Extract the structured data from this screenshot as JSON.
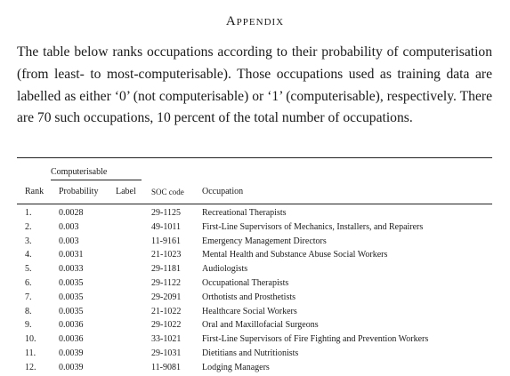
{
  "heading": "Appendix",
  "intro": "The table below ranks occupations according to their probability of computerisation (from least- to most-computerisable). Those occupations used as training data are labelled as either ‘0’ (not computerisable) or ‘1’ (computerisable), respectively. There are 70 such occupations, 10 percent of the total number of occupations.",
  "table": {
    "group_header": "Computerisable",
    "headers": {
      "rank": "Rank",
      "probability": "Probability",
      "label": "Label",
      "soc": "SOC code",
      "occupation": "Occupation"
    },
    "rows": [
      {
        "rank": "1.",
        "probability": "0.0028",
        "label": "",
        "soc": "29-1125",
        "occupation": "Recreational Therapists"
      },
      {
        "rank": "2.",
        "probability": "0.003",
        "label": "",
        "soc": "49-1011",
        "occupation": "First-Line Supervisors of Mechanics, Installers, and Repairers"
      },
      {
        "rank": "3.",
        "probability": "0.003",
        "label": "",
        "soc": "11-9161",
        "occupation": "Emergency Management Directors"
      },
      {
        "rank": "4.",
        "probability": "0.0031",
        "label": "",
        "soc": "21-1023",
        "occupation": "Mental Health and Substance Abuse Social Workers"
      },
      {
        "rank": "5.",
        "probability": "0.0033",
        "label": "",
        "soc": "29-1181",
        "occupation": "Audiologists"
      },
      {
        "rank": "6.",
        "probability": "0.0035",
        "label": "",
        "soc": "29-1122",
        "occupation": "Occupational Therapists"
      },
      {
        "rank": "7.",
        "probability": "0.0035",
        "label": "",
        "soc": "29-2091",
        "occupation": "Orthotists and Prosthetists"
      },
      {
        "rank": "8.",
        "probability": "0.0035",
        "label": "",
        "soc": "21-1022",
        "occupation": "Healthcare Social Workers"
      },
      {
        "rank": "9.",
        "probability": "0.0036",
        "label": "",
        "soc": "29-1022",
        "occupation": "Oral and Maxillofacial Surgeons"
      },
      {
        "rank": "10.",
        "probability": "0.0036",
        "label": "",
        "soc": "33-1021",
        "occupation": "First-Line Supervisors of Fire Fighting and Prevention Workers"
      },
      {
        "rank": "11.",
        "probability": "0.0039",
        "label": "",
        "soc": "29-1031",
        "occupation": "Dietitians and Nutritionists"
      },
      {
        "rank": "12.",
        "probability": "0.0039",
        "label": "",
        "soc": "11-9081",
        "occupation": "Lodging Managers"
      }
    ]
  }
}
